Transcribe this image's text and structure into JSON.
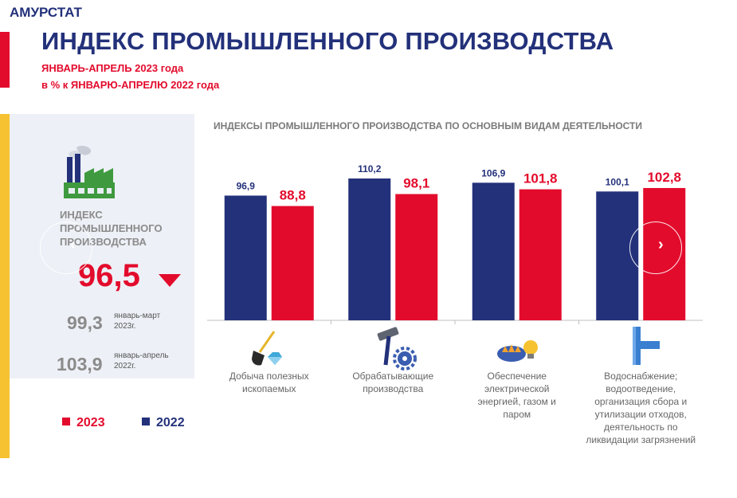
{
  "header": {
    "org": "АМУРСТАТ",
    "title": "ИНДЕКС ПРОМЫШЛЕННОГО ПРОИЗВОДСТВА",
    "subtitle_line1": "ЯНВАРЬ-АПРЕЛЬ  2023  года",
    "subtitle_line2": "в % к ЯНВАРЮ-АПРЕЛЮ  2022  года"
  },
  "kpi": {
    "label": "ИНДЕКС ПРОМЫШЛЕННОГО ПРОИЗВОДСТВА",
    "value": "96,5",
    "trend": "down",
    "history": [
      {
        "value": "99,3",
        "label_line1": "январь-март",
        "label_line2": "2023г."
      },
      {
        "value": "103,9",
        "label_line1": "январь-апрель",
        "label_line2": "2022г."
      }
    ]
  },
  "legend": [
    {
      "label": "2023",
      "color": "#e30b2c"
    },
    {
      "label": "2022",
      "color": "#23317a"
    }
  ],
  "icons": {
    "factory": "factory-icon",
    "mining": "shovel-diamond-icon",
    "manufacturing": "hammer-gear-icon",
    "energy": "lightbulb-gas-icon",
    "water": "water-pipe-icon",
    "prev": "chevron-left-icon",
    "next": "chevron-right-icon"
  },
  "nav": {
    "prev": "‹",
    "next": "›"
  },
  "colors": {
    "accent_red": "#e30b2c",
    "brand_blue": "#23317a",
    "yellow": "#f6c231"
  },
  "chart_data": {
    "type": "bar",
    "title": "ИНДЕКСЫ ПРОМЫШЛЕННОГО ПРОИЗВОДСТВА ПО ОСНОВНЫМ ВИДАМ ДЕЯТЕЛЬНОСТИ",
    "categories": [
      "Добыча полезных ископаемых",
      "Обрабатывающие производства",
      "Обеспечение электрической энергией, газом и паром",
      "Водоснабжение; водоотведение, организация сбора и утилизации отходов, деятельность по ликвидации загрязнений"
    ],
    "category_lines": [
      [
        "Добыча полезных",
        "ископаемых"
      ],
      [
        "Обрабатывающие",
        "производства"
      ],
      [
        "Обеспечение",
        "электрической",
        "энергией, газом и",
        "паром"
      ],
      [
        "Водоснабжение;",
        "водоотведение,",
        "организация сбора и",
        "утилизации отходов,",
        "деятельность по",
        "ликвидации загрязнений"
      ]
    ],
    "series": [
      {
        "name": "2022",
        "color": "#23317a",
        "values": [
          96.9,
          110.2,
          106.9,
          100.1
        ],
        "labels": [
          "96,9",
          "110,2",
          "106,9",
          "100,1"
        ]
      },
      {
        "name": "2023",
        "color": "#e30b2c",
        "values": [
          88.8,
          98.1,
          101.8,
          102.8
        ],
        "labels": [
          "88,8",
          "98,1",
          "101,8",
          "102,8"
        ]
      }
    ],
    "ylim": [
      0,
      110.2
    ],
    "grid": false,
    "legend_position": "bottom-left"
  }
}
